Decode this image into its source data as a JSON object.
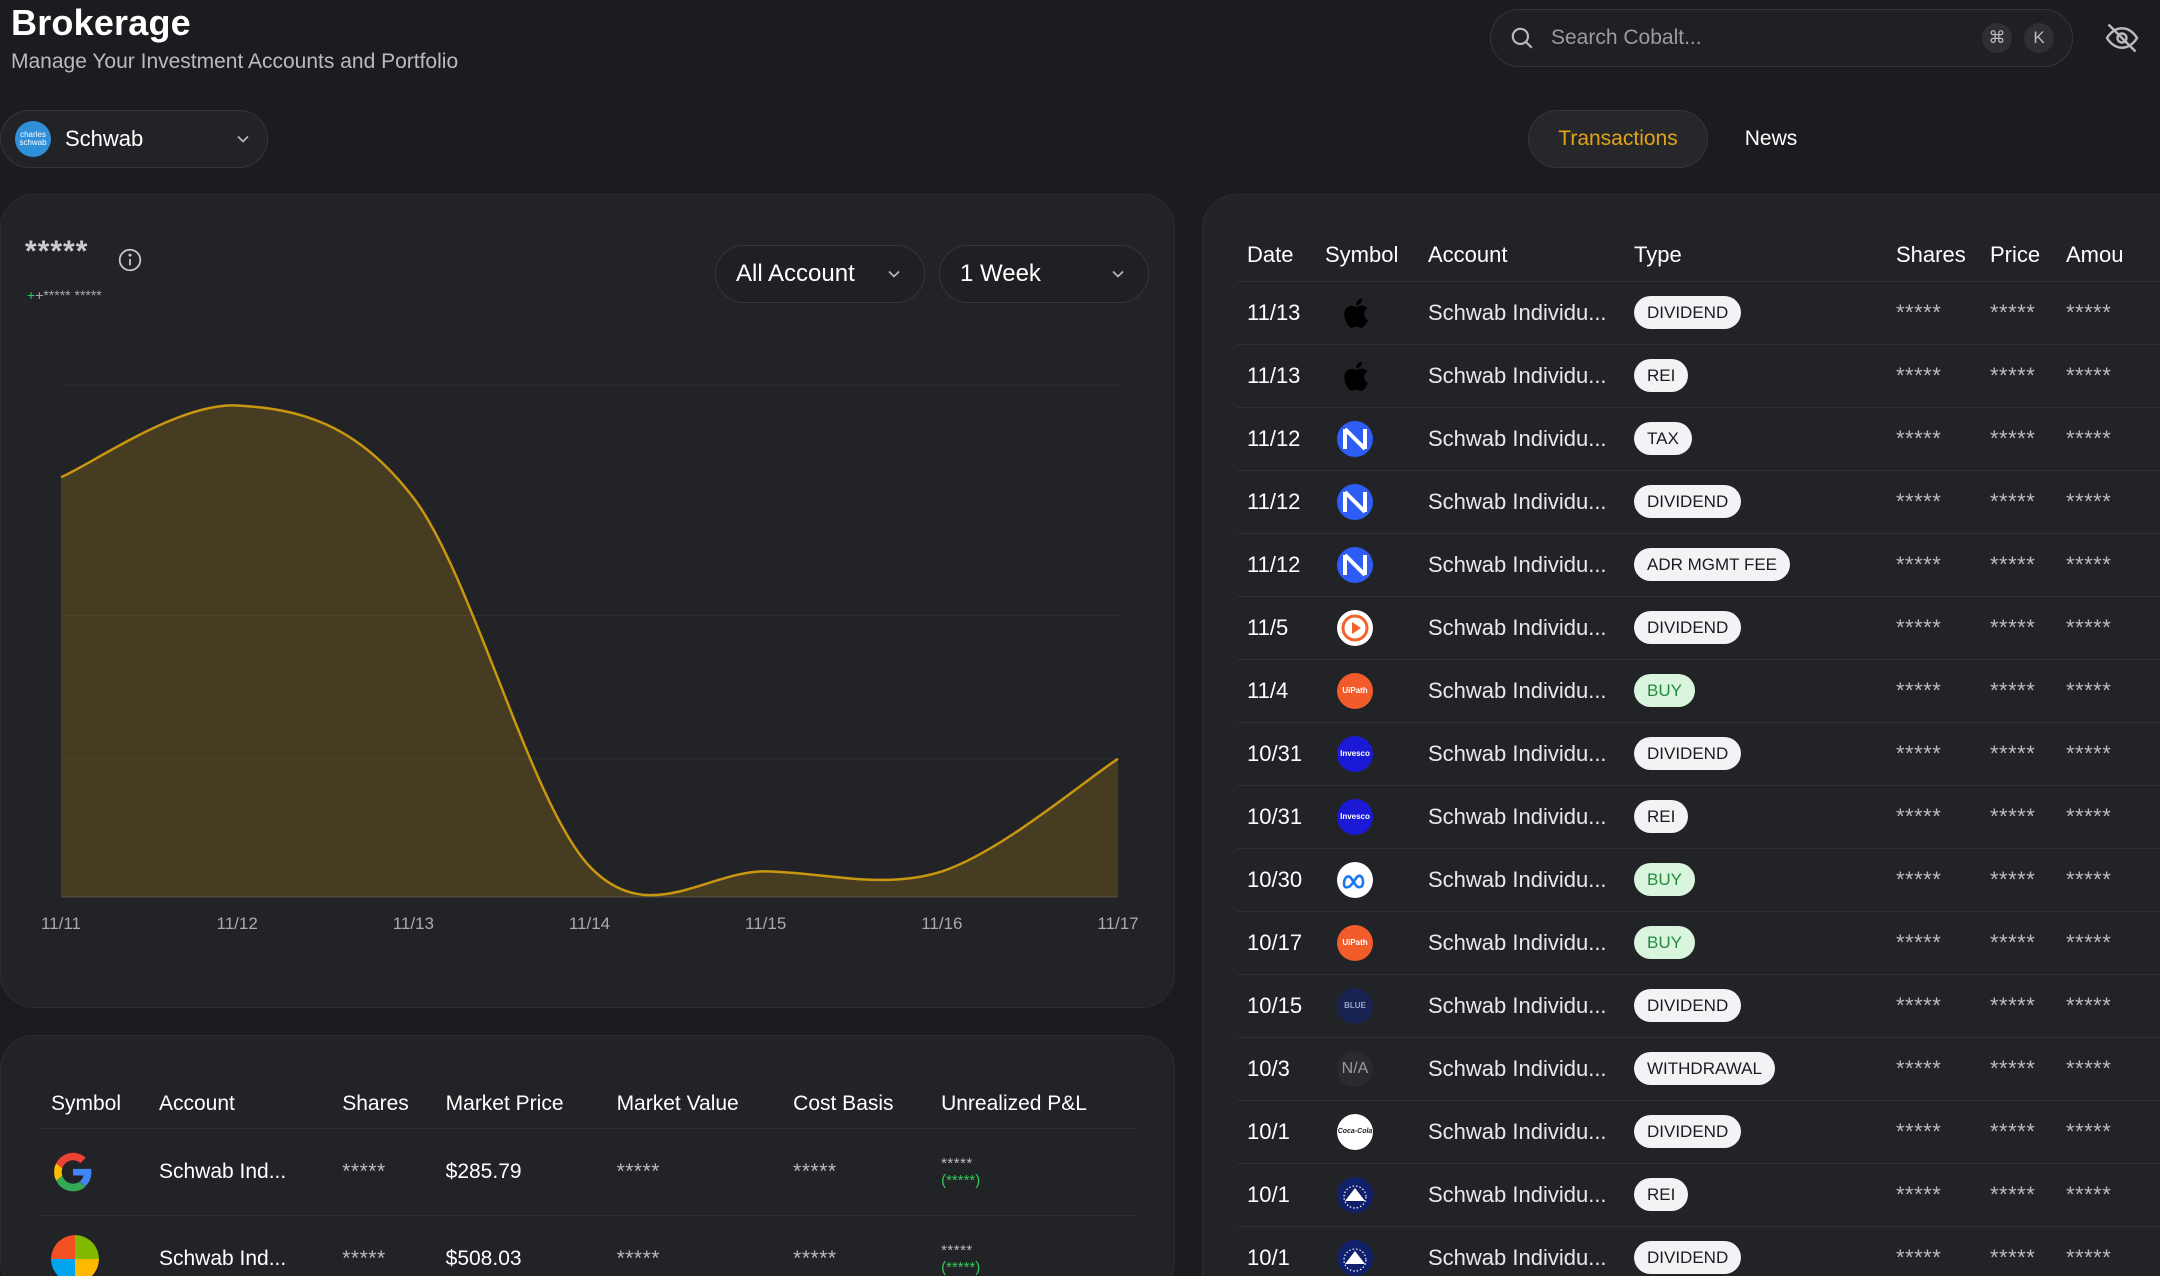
{
  "header": {
    "title": "Brokerage",
    "subtitle": "Manage Your Investment Accounts and Portfolio"
  },
  "search": {
    "placeholder": "Search Cobalt...",
    "shortcut_mod": "⌘",
    "shortcut_key": "K"
  },
  "account_selector": {
    "value": "Schwab",
    "logo_text": "charles schwab"
  },
  "tabs": {
    "transactions": "Transactions",
    "news": "News",
    "active": "Transactions"
  },
  "overview": {
    "value": "*****",
    "change": "+***** *****",
    "filters": {
      "account": "All Account",
      "range": "1 Week"
    }
  },
  "chart_data": {
    "type": "area",
    "x": [
      "11/11",
      "11/12",
      "11/13",
      "11/14",
      "11/15",
      "11/16",
      "11/17"
    ],
    "values": [
      0.82,
      0.96,
      0.78,
      0.06,
      0.05,
      0.05,
      0.27
    ],
    "ylim": [
      0,
      1
    ],
    "color": "#c9960f",
    "grid": true,
    "note": "y values hidden (masked); shape estimated as fraction of axis range"
  },
  "holdings": {
    "columns": [
      "Symbol",
      "Account",
      "Shares",
      "Market Price",
      "Market Value",
      "Cost Basis",
      "Unrealized P&L"
    ],
    "rows": [
      {
        "icon": "google",
        "account": "Schwab Ind...",
        "shares": "*****",
        "price": "$285.79",
        "value": "*****",
        "cost": "*****",
        "pnl": "*****",
        "pnl_pct": "(*****)"
      },
      {
        "icon": "microsoft",
        "account": "Schwab Ind...",
        "shares": "*****",
        "price": "$508.03",
        "value": "*****",
        "cost": "*****",
        "pnl": "*****",
        "pnl_pct": "(*****)"
      }
    ]
  },
  "transactions": {
    "columns": [
      "Date",
      "Symbol",
      "Account",
      "Type",
      "Shares",
      "Price",
      "Amou"
    ],
    "rows": [
      {
        "date": "11/13",
        "icon": "apple",
        "account": "Schwab Individu...",
        "type": "DIVIDEND",
        "shares": "*****",
        "price": "*****",
        "amount": "*****"
      },
      {
        "date": "11/13",
        "icon": "apple",
        "account": "Schwab Individu...",
        "type": "REI",
        "shares": "*****",
        "price": "*****",
        "amount": "*****"
      },
      {
        "date": "11/12",
        "icon": "n-blue",
        "account": "Schwab Individu...",
        "type": "TAX",
        "shares": "*****",
        "price": "*****",
        "amount": "*****"
      },
      {
        "date": "11/12",
        "icon": "n-blue",
        "account": "Schwab Individu...",
        "type": "DIVIDEND",
        "shares": "*****",
        "price": "*****",
        "amount": "*****"
      },
      {
        "date": "11/12",
        "icon": "n-blue",
        "account": "Schwab Individu...",
        "type": "ADR MGMT FEE",
        "shares": "*****",
        "price": "*****",
        "amount": "*****"
      },
      {
        "date": "11/5",
        "icon": "orange-play",
        "account": "Schwab Individu...",
        "type": "DIVIDEND",
        "shares": "*****",
        "price": "*****",
        "amount": "*****"
      },
      {
        "date": "11/4",
        "icon": "uipath",
        "account": "Schwab Individu...",
        "type": "BUY",
        "shares": "*****",
        "price": "*****",
        "amount": "*****"
      },
      {
        "date": "10/31",
        "icon": "invesco",
        "account": "Schwab Individu...",
        "type": "DIVIDEND",
        "shares": "*****",
        "price": "*****",
        "amount": "*****"
      },
      {
        "date": "10/31",
        "icon": "invesco",
        "account": "Schwab Individu...",
        "type": "REI",
        "shares": "*****",
        "price": "*****",
        "amount": "*****"
      },
      {
        "date": "10/30",
        "icon": "meta",
        "account": "Schwab Individu...",
        "type": "BUY",
        "shares": "*****",
        "price": "*****",
        "amount": "*****"
      },
      {
        "date": "10/17",
        "icon": "uipath",
        "account": "Schwab Individu...",
        "type": "BUY",
        "shares": "*****",
        "price": "*****",
        "amount": "*****"
      },
      {
        "date": "10/15",
        "icon": "navy",
        "account": "Schwab Individu...",
        "type": "DIVIDEND",
        "shares": "*****",
        "price": "*****",
        "amount": "*****"
      },
      {
        "date": "10/3",
        "icon": "na",
        "account": "Schwab Individu...",
        "type": "WITHDRAWAL",
        "shares": "*****",
        "price": "*****",
        "amount": "*****"
      },
      {
        "date": "10/1",
        "icon": "coca-cola",
        "account": "Schwab Individu...",
        "type": "DIVIDEND",
        "shares": "*****",
        "price": "*****",
        "amount": "*****"
      },
      {
        "date": "10/1",
        "icon": "paramount",
        "account": "Schwab Individu...",
        "type": "REI",
        "shares": "*****",
        "price": "*****",
        "amount": "*****"
      },
      {
        "date": "10/1",
        "icon": "paramount",
        "account": "Schwab Individu...",
        "type": "DIVIDEND",
        "shares": "*****",
        "price": "*****",
        "amount": "*****"
      }
    ]
  },
  "icon_labels": {
    "uipath": "UiPath",
    "invesco": "Invesco",
    "na": "N/A",
    "coca-cola": "Coca-Cola",
    "navy": "BLUE"
  }
}
